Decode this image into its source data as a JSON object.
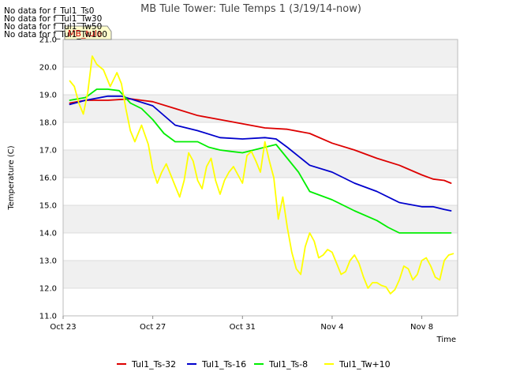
{
  "no_data_messages": [
    "No data for f_Tul1_Ts0",
    "No data for f_Tul1_Tw30",
    "No data for f_Tul1_Tw50",
    "No data for f_Tul1_Tw100"
  ],
  "legend_box_label": "MB_tule",
  "colors": {
    "Tul1_Ts-32": "#dd0000",
    "Tul1_Ts-16": "#0000cc",
    "Tul1_Ts-8": "#00ee00",
    "Tul1_Tw+10": "#ffff00",
    "band": "#f0f0f0",
    "grid": "#dddddd"
  },
  "chart_data": {
    "type": "line",
    "title": "MB Tule Tower: Tule Temps 1 (3/19/14-now)",
    "xlabel": "Time",
    "ylabel": "Temperature (C)",
    "xlim": [
      0,
      17.6
    ],
    "ylim": [
      11.0,
      21.0
    ],
    "x_ticks": [
      {
        "label": "Oct 23",
        "value": 0
      },
      {
        "label": "Oct 27",
        "value": 4
      },
      {
        "label": "Oct 31",
        "value": 8
      },
      {
        "label": "Nov 4",
        "value": 12
      },
      {
        "label": "Nov 8",
        "value": 16
      }
    ],
    "y_ticks": [
      "11.0",
      "12.0",
      "13.0",
      "14.0",
      "15.0",
      "16.0",
      "17.0",
      "18.0",
      "19.0",
      "20.0",
      "21.0"
    ],
    "grid": true,
    "legend_position": "bottom",
    "series": [
      {
        "name": "Tul1_Ts-32",
        "x": [
          0.3,
          1.0,
          2.0,
          3.0,
          3.5,
          4.0,
          5.0,
          6.0,
          7.0,
          8.0,
          9.0,
          10.0,
          11.0,
          12.0,
          13.0,
          14.0,
          15.0,
          16.0,
          16.5,
          17.0,
          17.3
        ],
        "y": [
          18.7,
          18.8,
          18.8,
          18.85,
          18.8,
          18.75,
          18.5,
          18.25,
          18.1,
          17.95,
          17.8,
          17.75,
          17.6,
          17.25,
          17.0,
          16.7,
          16.45,
          16.1,
          15.95,
          15.9,
          15.8
        ]
      },
      {
        "name": "Tul1_Ts-16",
        "x": [
          0.3,
          1.0,
          2.0,
          2.6,
          3.0,
          4.0,
          5.0,
          6.0,
          7.0,
          8.0,
          9.0,
          9.5,
          10.0,
          11.0,
          12.0,
          13.0,
          14.0,
          15.0,
          16.0,
          16.5,
          17.0,
          17.3
        ],
        "y": [
          18.65,
          18.8,
          18.95,
          18.95,
          18.85,
          18.6,
          17.9,
          17.7,
          17.45,
          17.4,
          17.45,
          17.4,
          17.1,
          16.45,
          16.2,
          15.8,
          15.5,
          15.1,
          14.95,
          14.95,
          14.85,
          14.8
        ]
      },
      {
        "name": "Tul1_Ts-8",
        "x": [
          0.3,
          1.0,
          1.5,
          2.0,
          2.5,
          3.0,
          3.5,
          4.0,
          4.5,
          5.0,
          6.0,
          6.5,
          7.0,
          7.5,
          8.0,
          8.5,
          9.0,
          9.5,
          10.0,
          10.5,
          11.0,
          12.0,
          13.0,
          14.0,
          14.5,
          15.0,
          16.0,
          17.0,
          17.3
        ],
        "y": [
          18.8,
          18.9,
          19.2,
          19.2,
          19.15,
          18.7,
          18.5,
          18.1,
          17.6,
          17.3,
          17.3,
          17.1,
          17.0,
          16.95,
          16.9,
          17.0,
          17.1,
          17.2,
          16.7,
          16.2,
          15.5,
          15.2,
          14.8,
          14.45,
          14.2,
          14.0,
          14.0,
          14.0,
          14.0
        ]
      },
      {
        "name": "Tul1_Tw+10",
        "x": [
          0.3,
          0.5,
          0.7,
          0.9,
          1.1,
          1.3,
          1.5,
          1.8,
          2.1,
          2.4,
          2.6,
          2.8,
          3.0,
          3.2,
          3.5,
          3.8,
          4.0,
          4.2,
          4.4,
          4.6,
          5.0,
          5.2,
          5.4,
          5.6,
          5.8,
          6.0,
          6.2,
          6.4,
          6.6,
          6.8,
          7.0,
          7.2,
          7.4,
          7.6,
          7.8,
          8.0,
          8.2,
          8.4,
          8.6,
          8.8,
          9.0,
          9.2,
          9.4,
          9.6,
          9.8,
          10.0,
          10.2,
          10.4,
          10.6,
          10.8,
          11.0,
          11.2,
          11.4,
          11.6,
          11.8,
          12.0,
          12.2,
          12.4,
          12.6,
          12.8,
          13.0,
          13.2,
          13.4,
          13.6,
          13.8,
          14.0,
          14.2,
          14.4,
          14.6,
          14.8,
          15.0,
          15.2,
          15.4,
          15.6,
          15.8,
          16.0,
          16.2,
          16.4,
          16.6,
          16.8,
          17.0,
          17.2,
          17.4
        ],
        "y": [
          19.5,
          19.3,
          18.7,
          18.3,
          19.1,
          20.4,
          20.1,
          19.9,
          19.3,
          19.8,
          19.4,
          18.5,
          17.7,
          17.3,
          17.9,
          17.2,
          16.3,
          15.8,
          16.2,
          16.5,
          15.7,
          15.3,
          15.9,
          16.9,
          16.6,
          15.9,
          15.6,
          16.4,
          16.7,
          15.9,
          15.4,
          15.9,
          16.2,
          16.4,
          16.1,
          15.8,
          16.8,
          16.95,
          16.6,
          16.2,
          17.3,
          16.6,
          16.0,
          14.5,
          15.3,
          14.2,
          13.3,
          12.7,
          12.5,
          13.5,
          14.0,
          13.7,
          13.1,
          13.2,
          13.4,
          13.3,
          12.9,
          12.5,
          12.6,
          13.0,
          13.2,
          12.9,
          12.4,
          12.0,
          12.2,
          12.2,
          12.1,
          12.05,
          11.8,
          11.95,
          12.3,
          12.8,
          12.7,
          12.3,
          12.5,
          13.0,
          13.1,
          12.8,
          12.4,
          12.3,
          13.0,
          13.2,
          13.25
        ]
      }
    ]
  }
}
